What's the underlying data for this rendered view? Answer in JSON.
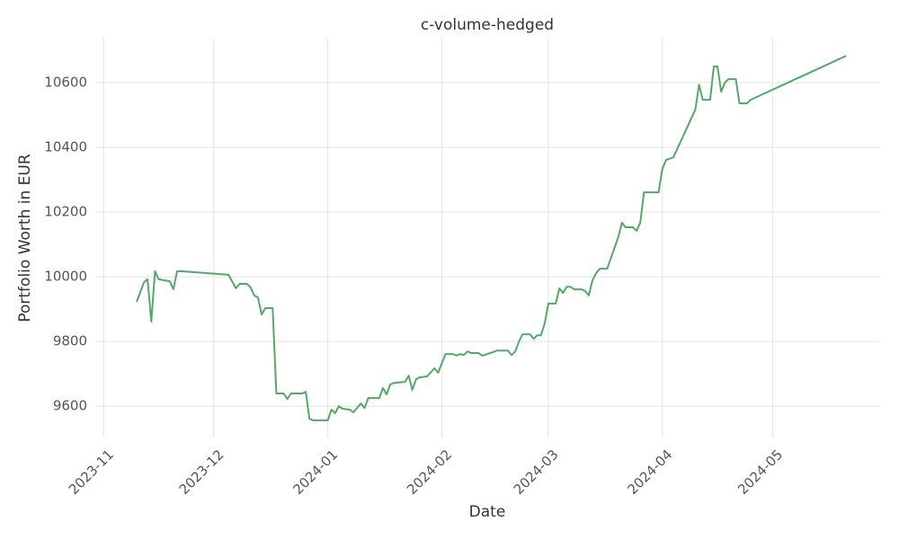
{
  "chart_data": {
    "type": "line",
    "title": "c-volume-hedged",
    "x_label": "Date",
    "y_label": "Portfolio Worth in EUR",
    "x": [
      "2023-11-10",
      "2023-11-12",
      "2023-11-13",
      "2023-11-14",
      "2023-11-15",
      "2023-11-16",
      "2023-11-19",
      "2023-11-20",
      "2023-11-21",
      "2023-11-22",
      "2023-12-05",
      "2023-12-07",
      "2023-12-08",
      "2023-12-10",
      "2023-12-11",
      "2023-12-12",
      "2023-12-13",
      "2023-12-14",
      "2023-12-15",
      "2023-12-17",
      "2023-12-18",
      "2023-12-20",
      "2023-12-21",
      "2023-12-22",
      "2023-12-25",
      "2023-12-26",
      "2023-12-27",
      "2023-12-28",
      "2024-01-01",
      "2024-01-02",
      "2024-01-03",
      "2024-01-04",
      "2024-01-05",
      "2024-01-07",
      "2024-01-08",
      "2024-01-10",
      "2024-01-11",
      "2024-01-12",
      "2024-01-15",
      "2024-01-16",
      "2024-01-17",
      "2024-01-18",
      "2024-01-19",
      "2024-01-22",
      "2024-01-23",
      "2024-01-24",
      "2024-01-25",
      "2024-01-26",
      "2024-01-28",
      "2024-01-30",
      "2024-01-31",
      "2024-02-02",
      "2024-02-04",
      "2024-02-05",
      "2024-02-06",
      "2024-02-07",
      "2024-02-08",
      "2024-02-09",
      "2024-02-11",
      "2024-02-12",
      "2024-02-15",
      "2024-02-16",
      "2024-02-19",
      "2024-02-20",
      "2024-02-21",
      "2024-02-22",
      "2024-02-23",
      "2024-02-25",
      "2024-02-26",
      "2024-02-27",
      "2024-02-28",
      "2024-02-29",
      "2024-03-01",
      "2024-03-03",
      "2024-03-04",
      "2024-03-05",
      "2024-03-06",
      "2024-03-07",
      "2024-03-08",
      "2024-03-10",
      "2024-03-11",
      "2024-03-12",
      "2024-03-13",
      "2024-03-14",
      "2024-03-15",
      "2024-03-17",
      "2024-03-20",
      "2024-03-21",
      "2024-03-22",
      "2024-03-24",
      "2024-03-25",
      "2024-03-26",
      "2024-03-27",
      "2024-03-31",
      "2024-04-01",
      "2024-04-02",
      "2024-04-04",
      "2024-04-10",
      "2024-04-11",
      "2024-04-12",
      "2024-04-14",
      "2024-04-15",
      "2024-04-16",
      "2024-04-17",
      "2024-04-18",
      "2024-04-19",
      "2024-04-21",
      "2024-04-22",
      "2024-04-24",
      "2024-04-25",
      "2024-05-21"
    ],
    "values": [
      9922,
      9983,
      9992,
      9861,
      10017,
      9992,
      9986,
      9961,
      10017,
      10017,
      10006,
      9964,
      9978,
      9978,
      9967,
      9942,
      9936,
      9883,
      9903,
      9903,
      9639,
      9639,
      9622,
      9639,
      9639,
      9644,
      9561,
      9556,
      9556,
      9589,
      9578,
      9600,
      9592,
      9589,
      9581,
      9608,
      9594,
      9625,
      9625,
      9656,
      9636,
      9667,
      9672,
      9675,
      9694,
      9650,
      9683,
      9689,
      9692,
      9717,
      9703,
      9761,
      9761,
      9756,
      9761,
      9758,
      9769,
      9764,
      9764,
      9756,
      9767,
      9772,
      9772,
      9758,
      9769,
      9800,
      9822,
      9822,
      9808,
      9819,
      9819,
      9856,
      9917,
      9917,
      9964,
      9950,
      9969,
      9969,
      9961,
      9961,
      9956,
      9942,
      9989,
      10011,
      10025,
      10025,
      10122,
      10167,
      10153,
      10153,
      10142,
      10167,
      10261,
      10261,
      10333,
      10361,
      10369,
      10517,
      10594,
      10547,
      10547,
      10650,
      10650,
      10572,
      10600,
      10611,
      10611,
      10536,
      10536,
      10547,
      10683
    ],
    "color": "#55a868",
    "xlim": [
      "2023-10-30",
      "2024-05-30"
    ],
    "xticks": [
      {
        "value": "2023-11-01",
        "label": "2023-11"
      },
      {
        "value": "2023-12-01",
        "label": "2023-12"
      },
      {
        "value": "2024-01-01",
        "label": "2024-01"
      },
      {
        "value": "2024-02-01",
        "label": "2024-02"
      },
      {
        "value": "2024-03-01",
        "label": "2024-03"
      },
      {
        "value": "2024-04-01",
        "label": "2024-04"
      },
      {
        "value": "2024-05-01",
        "label": "2024-05"
      }
    ],
    "ylim": [
      9503,
      10739
    ],
    "yticks": [
      9600,
      9800,
      10000,
      10200,
      10400,
      10600
    ],
    "grid": true
  }
}
